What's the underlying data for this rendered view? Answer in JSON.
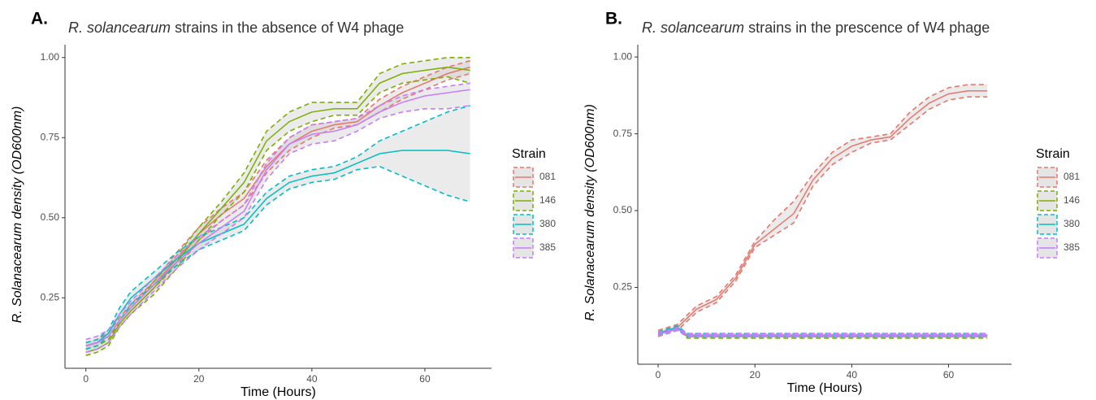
{
  "chart_data": [
    {
      "type": "line",
      "panel": "A.",
      "title_italic": "R. solancearum",
      "title": "strains in the absence of W4 phage",
      "x_label": "Time (Hours)",
      "y_label": "R. Solanacearum density (OD600nm)",
      "legend_title": "Strain",
      "xlim": [
        -3.7,
        71.8
      ],
      "ylim": [
        0.03,
        1.04
      ],
      "xticks": [
        0,
        20,
        40,
        60
      ],
      "yticks": [
        0.25,
        {
          "value": 0.5,
          "label": "0.50"
        },
        0.75,
        {
          "value": 1,
          "label": "1.00"
        }
      ],
      "x": [
        0,
        2,
        4,
        6,
        8,
        12,
        16,
        20,
        24,
        28,
        32,
        36,
        40,
        44,
        48,
        52,
        56,
        60,
        64,
        68
      ],
      "series": [
        {
          "name": "081",
          "color": "#e8766d",
          "values": [
            0.1,
            0.11,
            0.13,
            0.18,
            0.22,
            0.29,
            0.37,
            0.45,
            0.51,
            0.56,
            0.66,
            0.73,
            0.77,
            0.79,
            0.8,
            0.85,
            0.89,
            0.92,
            0.95,
            0.97
          ],
          "upper": [
            0.11,
            0.12,
            0.14,
            0.19,
            0.23,
            0.3,
            0.39,
            0.47,
            0.53,
            0.58,
            0.68,
            0.75,
            0.79,
            0.8,
            0.81,
            0.87,
            0.91,
            0.94,
            0.97,
            0.99
          ],
          "lower": [
            0.09,
            0.1,
            0.12,
            0.17,
            0.21,
            0.28,
            0.35,
            0.43,
            0.49,
            0.54,
            0.64,
            0.71,
            0.75,
            0.78,
            0.79,
            0.83,
            0.87,
            0.9,
            0.93,
            0.95
          ]
        },
        {
          "name": "146",
          "color": "#7cae00",
          "values": [
            0.08,
            0.09,
            0.11,
            0.17,
            0.21,
            0.28,
            0.36,
            0.45,
            0.53,
            0.61,
            0.74,
            0.8,
            0.83,
            0.84,
            0.84,
            0.92,
            0.95,
            0.96,
            0.97,
            0.96
          ],
          "upper": [
            0.09,
            0.1,
            0.12,
            0.18,
            0.22,
            0.3,
            0.38,
            0.47,
            0.55,
            0.64,
            0.77,
            0.83,
            0.86,
            0.86,
            0.86,
            0.95,
            0.98,
            0.99,
            1.0,
            1.0
          ],
          "lower": [
            0.07,
            0.08,
            0.1,
            0.16,
            0.2,
            0.26,
            0.34,
            0.43,
            0.51,
            0.58,
            0.71,
            0.77,
            0.8,
            0.82,
            0.82,
            0.89,
            0.92,
            0.93,
            0.94,
            0.92
          ]
        },
        {
          "name": "380",
          "color": "#00bfc4",
          "values": [
            0.1,
            0.11,
            0.14,
            0.2,
            0.25,
            0.31,
            0.37,
            0.42,
            0.45,
            0.48,
            0.56,
            0.61,
            0.63,
            0.64,
            0.67,
            0.7,
            0.71,
            0.71,
            0.71,
            0.7
          ],
          "upper": [
            0.11,
            0.12,
            0.15,
            0.22,
            0.27,
            0.33,
            0.39,
            0.44,
            0.47,
            0.5,
            0.58,
            0.63,
            0.65,
            0.66,
            0.69,
            0.74,
            0.77,
            0.8,
            0.83,
            0.85
          ],
          "lower": [
            0.09,
            0.1,
            0.13,
            0.18,
            0.23,
            0.29,
            0.35,
            0.4,
            0.43,
            0.46,
            0.54,
            0.59,
            0.61,
            0.62,
            0.65,
            0.66,
            0.63,
            0.6,
            0.57,
            0.55
          ]
        },
        {
          "name": "385",
          "color": "#c77cff",
          "values": [
            0.1,
            0.11,
            0.13,
            0.18,
            0.22,
            0.29,
            0.36,
            0.42,
            0.47,
            0.52,
            0.65,
            0.73,
            0.76,
            0.77,
            0.79,
            0.83,
            0.86,
            0.88,
            0.89,
            0.9
          ],
          "upper": [
            0.12,
            0.13,
            0.15,
            0.2,
            0.24,
            0.31,
            0.38,
            0.44,
            0.49,
            0.54,
            0.67,
            0.75,
            0.79,
            0.8,
            0.81,
            0.85,
            0.88,
            0.9,
            0.91,
            0.92
          ],
          "lower": [
            0.08,
            0.09,
            0.11,
            0.16,
            0.2,
            0.27,
            0.34,
            0.4,
            0.45,
            0.5,
            0.62,
            0.7,
            0.73,
            0.74,
            0.77,
            0.81,
            0.83,
            0.84,
            0.84,
            0.85
          ]
        }
      ]
    },
    {
      "type": "line",
      "panel": "B.",
      "title_italic": "R. solancearum",
      "title": "strains in the prescence of W4 phage",
      "x_label": "Time (Hours)",
      "y_label": "R. Solanacearum density (OD600nm)",
      "legend_title": "Strain",
      "xlim": [
        -4.2,
        73
      ],
      "ylim": [
        0,
        1.04
      ],
      "xticks": [
        0,
        20,
        40,
        60
      ],
      "yticks": [
        0.25,
        {
          "value": 0.5,
          "label": "0.50"
        },
        0.75,
        {
          "value": 1,
          "label": "1.00"
        }
      ],
      "x": [
        0,
        2,
        4,
        6,
        8,
        12,
        16,
        20,
        24,
        28,
        32,
        36,
        40,
        44,
        48,
        52,
        56,
        60,
        64,
        68
      ],
      "series": [
        {
          "name": "081",
          "color": "#e8766d",
          "values": [
            0.1,
            0.11,
            0.12,
            0.15,
            0.18,
            0.21,
            0.28,
            0.39,
            0.44,
            0.49,
            0.6,
            0.67,
            0.71,
            0.73,
            0.74,
            0.8,
            0.85,
            0.88,
            0.89,
            0.89
          ],
          "upper": [
            0.11,
            0.12,
            0.13,
            0.16,
            0.19,
            0.22,
            0.29,
            0.4,
            0.47,
            0.53,
            0.62,
            0.69,
            0.73,
            0.74,
            0.75,
            0.82,
            0.87,
            0.9,
            0.91,
            0.91
          ],
          "lower": [
            0.09,
            0.1,
            0.11,
            0.14,
            0.17,
            0.2,
            0.27,
            0.38,
            0.42,
            0.46,
            0.58,
            0.65,
            0.69,
            0.72,
            0.73,
            0.78,
            0.83,
            0.86,
            0.87,
            0.87
          ]
        },
        {
          "name": "146",
          "color": "#7cae00",
          "values": [
            0.1,
            0.11,
            0.12,
            0.09,
            0.09,
            0.09,
            0.09,
            0.09,
            0.09,
            0.09,
            0.09,
            0.09,
            0.09,
            0.09,
            0.09,
            0.09,
            0.09,
            0.09,
            0.09,
            0.09
          ],
          "upper": [
            0.105,
            0.115,
            0.125,
            0.095,
            0.095,
            0.095,
            0.095,
            0.095,
            0.095,
            0.095,
            0.095,
            0.095,
            0.095,
            0.095,
            0.095,
            0.095,
            0.095,
            0.095,
            0.095,
            0.095
          ],
          "lower": [
            0.095,
            0.105,
            0.115,
            0.085,
            0.085,
            0.085,
            0.085,
            0.085,
            0.085,
            0.085,
            0.085,
            0.085,
            0.085,
            0.085,
            0.085,
            0.085,
            0.085,
            0.085,
            0.085,
            0.085
          ]
        },
        {
          "name": "380",
          "color": "#00bfc4",
          "values": [
            0.1,
            0.11,
            0.12,
            0.095,
            0.095,
            0.095,
            0.095,
            0.095,
            0.095,
            0.095,
            0.095,
            0.095,
            0.095,
            0.095,
            0.095,
            0.095,
            0.095,
            0.095,
            0.095,
            0.095
          ],
          "upper": [
            0.105,
            0.115,
            0.125,
            0.1,
            0.1,
            0.1,
            0.1,
            0.1,
            0.1,
            0.1,
            0.1,
            0.1,
            0.1,
            0.1,
            0.1,
            0.1,
            0.1,
            0.1,
            0.1,
            0.1
          ],
          "lower": [
            0.095,
            0.105,
            0.115,
            0.09,
            0.09,
            0.09,
            0.09,
            0.09,
            0.09,
            0.09,
            0.09,
            0.09,
            0.09,
            0.09,
            0.09,
            0.09,
            0.09,
            0.09,
            0.09,
            0.09
          ]
        },
        {
          "name": "385",
          "color": "#c77cff",
          "values": [
            0.1,
            0.105,
            0.115,
            0.095,
            0.095,
            0.095,
            0.095,
            0.095,
            0.095,
            0.095,
            0.095,
            0.095,
            0.095,
            0.095,
            0.095,
            0.095,
            0.095,
            0.095,
            0.095,
            0.095
          ],
          "upper": [
            0.105,
            0.11,
            0.12,
            0.1,
            0.1,
            0.1,
            0.1,
            0.1,
            0.1,
            0.1,
            0.1,
            0.1,
            0.1,
            0.1,
            0.1,
            0.1,
            0.1,
            0.1,
            0.1,
            0.1
          ],
          "lower": [
            0.095,
            0.1,
            0.11,
            0.09,
            0.09,
            0.09,
            0.09,
            0.09,
            0.09,
            0.09,
            0.09,
            0.09,
            0.09,
            0.09,
            0.09,
            0.09,
            0.09,
            0.09,
            0.09,
            0.09
          ]
        }
      ]
    }
  ]
}
